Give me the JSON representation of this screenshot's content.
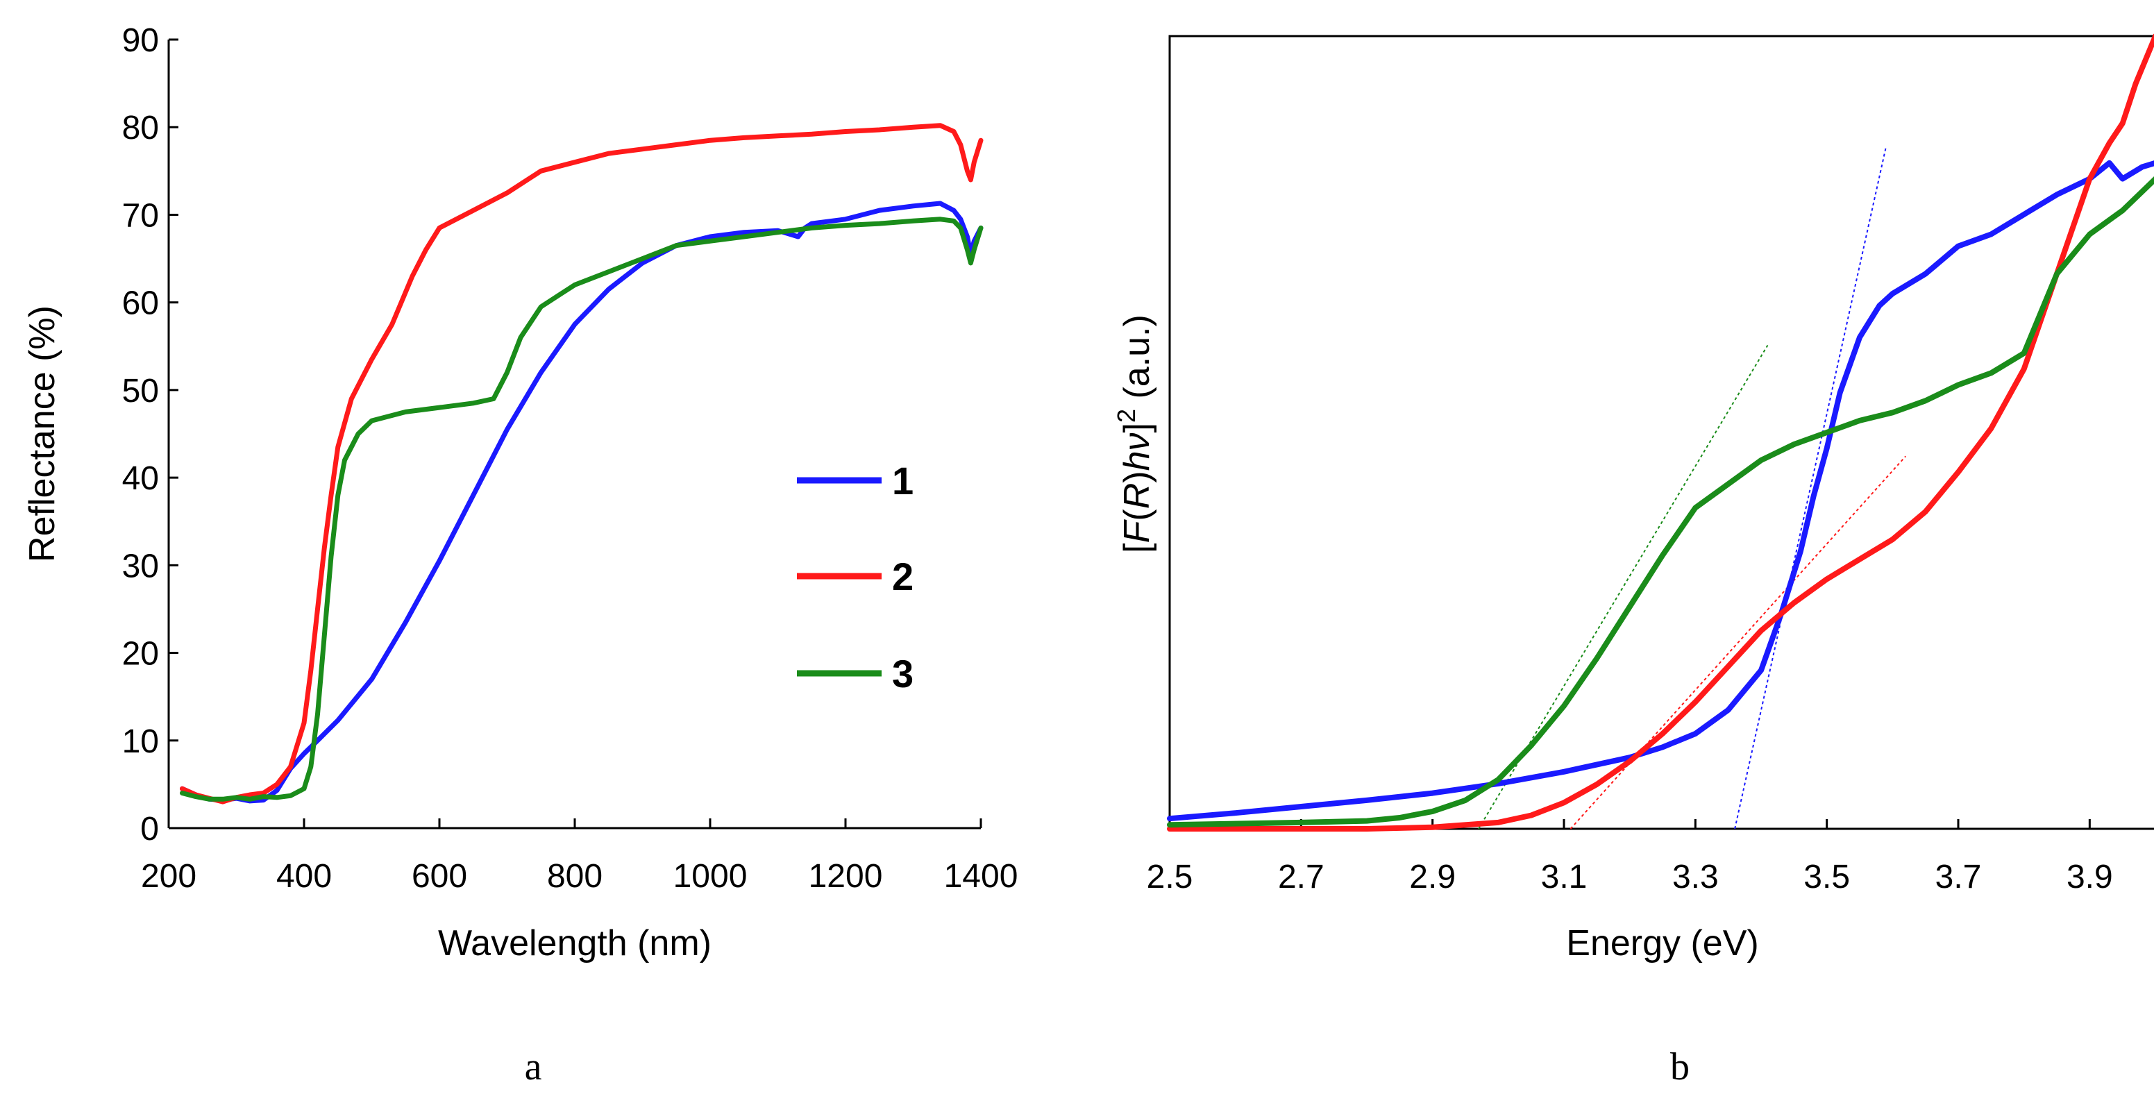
{
  "chart_data": [
    {
      "id": "a",
      "type": "line",
      "panel_label": "a",
      "xlabel": "Wavelength (nm)",
      "ylabel": "Reflectance (%)",
      "xlim": [
        200,
        1400
      ],
      "ylim": [
        0,
        90
      ],
      "xticks": [
        200,
        400,
        600,
        800,
        1000,
        1200,
        1400
      ],
      "yticks": [
        0,
        10,
        20,
        30,
        40,
        50,
        60,
        70,
        80,
        90
      ],
      "legend": {
        "placement": "center-right",
        "entries": [
          "1",
          "2",
          "3"
        ]
      },
      "series": [
        {
          "name": "1",
          "color": "#1a1aff",
          "x": [
            220,
            240,
            260,
            280,
            300,
            320,
            340,
            360,
            380,
            400,
            420,
            450,
            500,
            550,
            600,
            650,
            700,
            750,
            800,
            850,
            900,
            950,
            1000,
            1050,
            1100,
            1130,
            1140,
            1150,
            1200,
            1250,
            1300,
            1340,
            1360,
            1370,
            1380,
            1385,
            1390,
            1400
          ],
          "y": [
            4.5,
            3.8,
            3.3,
            3.2,
            3.4,
            3.1,
            3.2,
            4.3,
            6.8,
            8.5,
            10,
            12.3,
            17,
            23.5,
            30.5,
            38,
            45.5,
            52,
            57.5,
            61.5,
            64.5,
            66.5,
            67.5,
            68,
            68.2,
            67.5,
            68.5,
            69,
            69.5,
            70.5,
            71,
            71.3,
            70.5,
            69.5,
            67.5,
            65.5,
            67,
            68.5
          ]
        },
        {
          "name": "2",
          "color": "#ff1a1a",
          "x": [
            220,
            240,
            260,
            280,
            300,
            320,
            340,
            360,
            380,
            400,
            410,
            420,
            430,
            440,
            450,
            470,
            500,
            530,
            560,
            580,
            600,
            650,
            700,
            750,
            800,
            850,
            900,
            950,
            1000,
            1050,
            1100,
            1150,
            1200,
            1250,
            1300,
            1340,
            1360,
            1370,
            1380,
            1385,
            1390,
            1400
          ],
          "y": [
            4.5,
            3.8,
            3.4,
            3.0,
            3.5,
            3.8,
            4.0,
            5.0,
            7.0,
            12,
            18,
            25,
            32,
            38,
            43.5,
            49,
            53.5,
            57.5,
            63,
            66,
            68.5,
            70.5,
            72.5,
            75,
            76,
            77,
            77.5,
            78,
            78.5,
            78.8,
            79,
            79.2,
            79.5,
            79.7,
            80,
            80.2,
            79.5,
            78,
            75,
            74,
            76,
            78.5
          ]
        },
        {
          "name": "3",
          "color": "#1a8c1a",
          "x": [
            220,
            240,
            260,
            280,
            300,
            320,
            340,
            360,
            380,
            400,
            410,
            420,
            430,
            440,
            450,
            460,
            480,
            500,
            550,
            600,
            650,
            680,
            700,
            720,
            750,
            780,
            800,
            850,
            900,
            950,
            1000,
            1050,
            1100,
            1150,
            1200,
            1250,
            1300,
            1340,
            1360,
            1370,
            1380,
            1385,
            1390,
            1400
          ],
          "y": [
            4.0,
            3.6,
            3.3,
            3.3,
            3.5,
            3.3,
            3.6,
            3.5,
            3.7,
            4.5,
            7.0,
            13,
            22,
            31,
            38,
            42,
            45,
            46.5,
            47.5,
            48,
            48.5,
            49,
            52,
            56,
            59.5,
            61,
            62,
            63.5,
            65,
            66.5,
            67,
            67.5,
            68,
            68.5,
            68.8,
            69,
            69.3,
            69.5,
            69.3,
            68.5,
            66,
            64.5,
            66,
            68.5
          ]
        }
      ]
    },
    {
      "id": "b",
      "type": "line",
      "panel_label": "b",
      "xlabel": "Energy (eV)",
      "ylabel_prefix": "[",
      "ylabel_F": "F",
      "ylabel_paren_open": "(",
      "ylabel_R": "R",
      "ylabel_paren_close": ")",
      "ylabel_hv": "hν",
      "ylabel_bracket_close": "]",
      "ylabel_sup": "2",
      "ylabel_units": " (a.u.)",
      "xlim": [
        2.5,
        4.0
      ],
      "ylim": [
        0,
        100
      ],
      "xticks": [
        2.5,
        2.7,
        2.9,
        3.1,
        3.3,
        3.5,
        3.7,
        3.9
      ],
      "yticks": [],
      "series": [
        {
          "name": "1",
          "color": "#1a1aff",
          "x": [
            2.5,
            2.6,
            2.7,
            2.8,
            2.9,
            3.0,
            3.1,
            3.2,
            3.25,
            3.3,
            3.35,
            3.4,
            3.43,
            3.46,
            3.48,
            3.5,
            3.52,
            3.55,
            3.58,
            3.6,
            3.65,
            3.7,
            3.75,
            3.8,
            3.85,
            3.9,
            3.93,
            3.95,
            3.98,
            4.0
          ],
          "y": [
            1.3,
            2.0,
            2.8,
            3.6,
            4.5,
            5.7,
            7.2,
            9.0,
            10.3,
            12.0,
            15.0,
            20,
            27,
            35,
            42,
            48,
            55,
            62,
            66,
            67.5,
            70,
            73.5,
            75,
            77.5,
            80,
            82,
            84,
            82,
            83.5,
            84
          ]
        },
        {
          "name": "2",
          "color": "#ff1a1a",
          "x": [
            2.5,
            2.8,
            2.9,
            3.0,
            3.05,
            3.1,
            3.15,
            3.2,
            3.25,
            3.3,
            3.35,
            3.4,
            3.45,
            3.5,
            3.55,
            3.6,
            3.65,
            3.7,
            3.75,
            3.8,
            3.85,
            3.9,
            3.93,
            3.95,
            3.97,
            4.0
          ],
          "y": [
            0,
            0,
            0.2,
            0.8,
            1.7,
            3.3,
            5.6,
            8.5,
            12.0,
            16.0,
            20.5,
            25.0,
            28.5,
            31.5,
            34.0,
            36.5,
            40.0,
            45.0,
            50.5,
            58.0,
            70.0,
            82.0,
            86.5,
            89.0,
            94.0,
            100
          ]
        },
        {
          "name": "3",
          "color": "#1a8c1a",
          "x": [
            2.5,
            2.7,
            2.8,
            2.85,
            2.9,
            2.95,
            3.0,
            3.05,
            3.1,
            3.15,
            3.2,
            3.25,
            3.3,
            3.35,
            3.4,
            3.45,
            3.5,
            3.55,
            3.6,
            3.65,
            3.7,
            3.75,
            3.8,
            3.85,
            3.9,
            3.95,
            4.0
          ],
          "y": [
            0.5,
            0.8,
            1.0,
            1.4,
            2.2,
            3.6,
            6.2,
            10.5,
            15.5,
            21.5,
            28.0,
            34.5,
            40.5,
            43.5,
            46.5,
            48.5,
            50.0,
            51.5,
            52.5,
            54.0,
            56.0,
            57.5,
            60.0,
            70.0,
            75.0,
            78.0,
            82.0
          ]
        }
      ],
      "fit_lines": [
        {
          "name": "1",
          "color": "#1a1aff",
          "x": [
            3.36,
            3.59
          ],
          "y": [
            0,
            86
          ]
        },
        {
          "name": "2",
          "color": "#ff1a1a",
          "x": [
            3.11,
            3.62
          ],
          "y": [
            0,
            47
          ]
        },
        {
          "name": "3",
          "color": "#1a8c1a",
          "x": [
            2.97,
            3.41
          ],
          "y": [
            0,
            61
          ]
        }
      ]
    }
  ]
}
